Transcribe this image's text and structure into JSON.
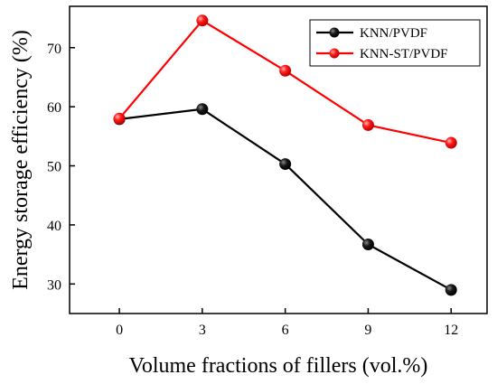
{
  "chart_data": {
    "type": "line",
    "title": "",
    "xlabel": "Volume fractions of fillers (vol.%)",
    "ylabel": "Energy storage efficiency (%)",
    "x": [
      0,
      3,
      6,
      9,
      12
    ],
    "xticks": [
      "0",
      "3",
      "6",
      "9",
      "12"
    ],
    "xlim": [
      -1.8,
      13.3
    ],
    "ylim": [
      25,
      77
    ],
    "yticks": [
      "30",
      "40",
      "50",
      "60",
      "70"
    ],
    "ytick_values": [
      30,
      40,
      50,
      60,
      70
    ],
    "grid": false,
    "legend_position": "top-right",
    "series": [
      {
        "name": "KNN/PVDF",
        "color": "#000000",
        "values": [
          57.9,
          59.6,
          50.3,
          36.7,
          29.0
        ]
      },
      {
        "name": "KNN-ST/PVDF",
        "color": "#ff0000",
        "values": [
          58.0,
          74.6,
          66.1,
          56.9,
          53.9
        ]
      }
    ]
  }
}
